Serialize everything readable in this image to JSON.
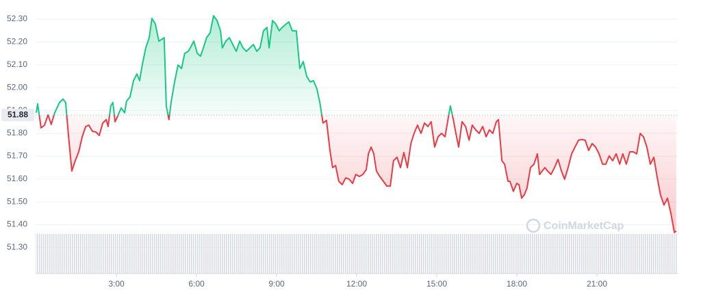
{
  "chart_data": {
    "type": "line",
    "watermark": "CoinMarketCap",
    "xlim": [
      0,
      24
    ],
    "xticks": [
      {
        "value": 3,
        "label": "3:00"
      },
      {
        "value": 6,
        "label": "6:00"
      },
      {
        "value": 9,
        "label": "9:00"
      },
      {
        "value": 12,
        "label": "12:00"
      },
      {
        "value": 15,
        "label": "15:00"
      },
      {
        "value": 18,
        "label": "18:00"
      },
      {
        "value": 21,
        "label": "21:00"
      }
    ],
    "ylim": [
      51.186,
      52.354
    ],
    "yticks": [
      {
        "value": 51.3,
        "label": "51.30"
      },
      {
        "value": 51.4,
        "label": "51.40"
      },
      {
        "value": 51.5,
        "label": "51.50"
      },
      {
        "value": 51.6,
        "label": "51.60"
      },
      {
        "value": 51.7,
        "label": "51.70"
      },
      {
        "value": 51.8,
        "label": "51.80"
      },
      {
        "value": 51.9,
        "label": "51.90"
      },
      {
        "value": 52.0,
        "label": "52.00"
      },
      {
        "value": 52.1,
        "label": "52.10"
      },
      {
        "value": 52.2,
        "label": "52.20"
      },
      {
        "value": 52.3,
        "label": "52.30"
      }
    ],
    "grid": true,
    "reference": 51.88,
    "x": [
      0,
      0.05,
      0.18,
      0.31,
      0.44,
      0.56,
      0.69,
      0.87,
      1.0,
      1.1,
      1.21,
      1.33,
      1.46,
      1.59,
      1.72,
      1.85,
      1.97,
      2.1,
      2.23,
      2.36,
      2.49,
      2.62,
      2.69,
      2.79,
      2.87,
      2.95,
      3.05,
      3.18,
      3.31,
      3.38,
      3.51,
      3.64,
      3.77,
      3.87,
      3.97,
      4.1,
      4.23,
      4.33,
      4.46,
      4.59,
      4.72,
      4.79,
      4.87,
      4.97,
      5.05,
      5.18,
      5.31,
      5.44,
      5.56,
      5.69,
      5.77,
      5.9,
      6.03,
      6.15,
      6.26,
      6.38,
      6.51,
      6.64,
      6.77,
      6.9,
      6.97,
      7.1,
      7.23,
      7.36,
      7.49,
      7.62,
      7.74,
      7.87,
      8.0,
      8.13,
      8.26,
      8.38,
      8.51,
      8.64,
      8.72,
      8.85,
      8.97,
      9.1,
      9.21,
      9.36,
      9.46,
      9.59,
      9.74,
      9.87,
      10.0,
      10.13,
      10.26,
      10.38,
      10.51,
      10.62,
      10.74,
      10.87,
      11.0,
      11.1,
      11.21,
      11.33,
      11.46,
      11.59,
      11.72,
      11.85,
      11.97,
      12.1,
      12.23,
      12.36,
      12.44,
      12.54,
      12.64,
      12.74,
      12.85,
      13.0,
      13.13,
      13.26,
      13.38,
      13.51,
      13.64,
      13.77,
      13.9,
      14.03,
      14.15,
      14.28,
      14.41,
      14.54,
      14.67,
      14.79,
      14.92,
      15.05,
      15.18,
      15.31,
      15.44,
      15.51,
      15.62,
      15.74,
      15.82,
      15.95,
      16.08,
      16.21,
      16.33,
      16.46,
      16.59,
      16.72,
      16.85,
      16.97,
      17.1,
      17.23,
      17.31,
      17.44,
      17.54,
      17.67,
      17.74,
      17.87,
      18.0,
      18.08,
      18.18,
      18.28,
      18.38,
      18.51,
      18.64,
      18.77,
      18.85,
      18.95,
      19.05,
      19.15,
      19.28,
      19.41,
      19.54,
      19.67,
      19.79,
      19.92,
      20.05,
      20.18,
      20.31,
      20.44,
      20.56,
      20.69,
      20.82,
      20.95,
      21.08,
      21.21,
      21.33,
      21.46,
      21.59,
      21.72,
      21.85,
      21.97,
      22.1,
      22.23,
      22.36,
      22.49,
      22.62,
      22.74,
      22.87,
      23.0,
      23.13,
      23.26,
      23.38,
      23.51,
      23.64,
      23.77,
      23.9,
      23.97
    ],
    "series": [
      {
        "color": "#16c784",
        "color_below": "#ea3943",
        "values": [
          51.89,
          51.929,
          51.824,
          51.836,
          51.881,
          51.839,
          51.89,
          51.935,
          51.95,
          51.935,
          51.785,
          51.635,
          51.68,
          51.719,
          51.785,
          51.83,
          51.836,
          51.809,
          51.806,
          51.791,
          51.845,
          51.86,
          51.83,
          51.92,
          51.935,
          51.851,
          51.875,
          51.911,
          51.89,
          51.941,
          51.959,
          52.031,
          52.06,
          52.031,
          52.099,
          52.174,
          52.219,
          52.303,
          52.279,
          52.204,
          52.213,
          52.219,
          51.92,
          51.86,
          51.935,
          52.025,
          52.099,
          52.084,
          52.15,
          52.159,
          52.174,
          52.204,
          52.15,
          52.138,
          52.174,
          52.219,
          52.24,
          52.315,
          52.294,
          52.249,
          52.174,
          52.204,
          52.219,
          52.189,
          52.159,
          52.204,
          52.174,
          52.159,
          52.174,
          52.189,
          52.159,
          52.174,
          52.249,
          52.264,
          52.174,
          52.294,
          52.279,
          52.249,
          52.264,
          52.279,
          52.288,
          52.249,
          52.249,
          52.084,
          52.114,
          52.049,
          52.025,
          52.031,
          51.995,
          51.935,
          51.845,
          51.857,
          51.725,
          51.65,
          51.659,
          51.59,
          51.575,
          51.605,
          51.599,
          51.581,
          51.62,
          51.611,
          51.62,
          51.641,
          51.71,
          51.74,
          51.71,
          51.635,
          51.614,
          51.59,
          51.569,
          51.569,
          51.68,
          51.695,
          51.65,
          51.716,
          51.65,
          51.755,
          51.8,
          51.836,
          51.8,
          51.845,
          51.83,
          51.851,
          51.74,
          51.785,
          51.8,
          51.785,
          51.875,
          51.92,
          51.86,
          51.785,
          51.74,
          51.851,
          51.83,
          51.77,
          51.836,
          51.815,
          51.8,
          51.83,
          51.785,
          51.815,
          51.8,
          51.851,
          51.86,
          51.68,
          51.665,
          51.59,
          51.59,
          51.546,
          51.581,
          51.575,
          51.516,
          51.531,
          51.56,
          51.65,
          51.665,
          51.71,
          51.62,
          51.635,
          51.65,
          51.635,
          51.62,
          51.65,
          51.686,
          51.635,
          51.599,
          51.65,
          51.71,
          51.74,
          51.77,
          51.773,
          51.77,
          51.725,
          51.755,
          51.74,
          51.71,
          51.665,
          51.665,
          51.701,
          51.68,
          51.71,
          51.665,
          51.71,
          51.665,
          51.719,
          51.719,
          51.71,
          51.8,
          51.785,
          51.74,
          51.665,
          51.695,
          51.605,
          51.531,
          51.486,
          51.516,
          51.45,
          51.366,
          51.372
        ]
      }
    ]
  }
}
